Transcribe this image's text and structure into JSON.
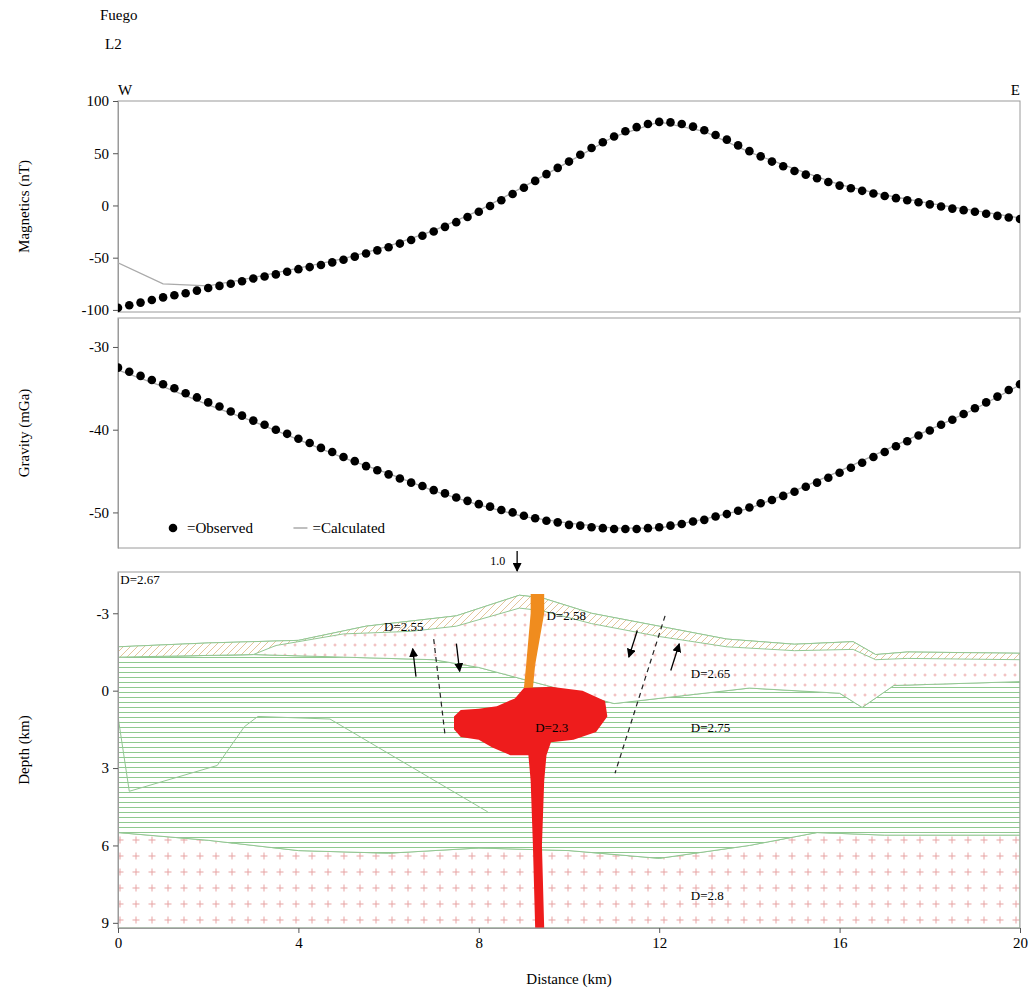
{
  "chart_data": [
    {
      "type": "scatter",
      "title": "Fuego",
      "subtitle": "L2",
      "ylabel": "Magnetics (nT)",
      "annotations": [
        {
          "text": "W",
          "x": 0
        },
        {
          "text": "E",
          "x": 20
        }
      ],
      "xlim": [
        0,
        20
      ],
      "ylim": [
        -102,
        100
      ],
      "yticks": [
        -100,
        -50,
        0,
        50,
        100
      ],
      "tick_labels": "y",
      "x": [
        0,
        0.25,
        0.5,
        0.75,
        1,
        1.25,
        1.5,
        1.75,
        2,
        2.25,
        2.5,
        2.75,
        3,
        3.25,
        3.5,
        3.75,
        4,
        4.25,
        4.5,
        4.75,
        5,
        5.25,
        5.5,
        5.75,
        6,
        6.25,
        6.5,
        6.75,
        7,
        7.25,
        7.5,
        7.75,
        8,
        8.25,
        8.5,
        8.75,
        9,
        9.25,
        9.5,
        9.75,
        10,
        10.25,
        10.5,
        10.75,
        11,
        11.25,
        11.5,
        11.75,
        12,
        12.25,
        12.5,
        12.75,
        13,
        13.25,
        13.5,
        13.75,
        14,
        14.25,
        14.5,
        14.75,
        15,
        15.25,
        15.5,
        15.75,
        16,
        16.25,
        16.5,
        16.75,
        17,
        17.25,
        17.5,
        17.75,
        18,
        18.25,
        18.5,
        18.75,
        19,
        19.25,
        19.5,
        19.75,
        20
      ],
      "series": [
        {
          "color": "#000000",
          "marker": "circle",
          "values": [
            -98,
            -95.5,
            -93,
            -90.5,
            -88,
            -86,
            -84,
            -81.5,
            -79,
            -77,
            -75,
            -72.5,
            -70,
            -68,
            -66,
            -63.5,
            -61,
            -59,
            -57,
            -54.5,
            -52,
            -49,
            -46,
            -43,
            -40,
            -36.5,
            -33,
            -29,
            -25,
            -20.5,
            -16,
            -11,
            -6,
            -0.5,
            5,
            11,
            17,
            23.5,
            30,
            36,
            42,
            48.5,
            55,
            60.5,
            66,
            71,
            75,
            78,
            80,
            79.5,
            78,
            75.5,
            72,
            67.5,
            63,
            57.5,
            52,
            47,
            42,
            37.5,
            33,
            29.5,
            26,
            22.5,
            19,
            16.5,
            14,
            11.5,
            9,
            7,
            5,
            3,
            1,
            -1,
            -3,
            -4.5,
            -6,
            -8,
            -10,
            -11.5,
            -13
          ]
        },
        {
          "color": "#aaaaaa",
          "type": "line",
          "line_style": "solid",
          "x": [
            0,
            1,
            2,
            3,
            4,
            5,
            6,
            7,
            8,
            9,
            10,
            11,
            12,
            13,
            14,
            15,
            16,
            17,
            18,
            19,
            20
          ],
          "values": [
            -55,
            -75,
            -77,
            -69,
            -60,
            -51,
            -39,
            -24,
            -5,
            18,
            42,
            66,
            80,
            71,
            51,
            35,
            20,
            10,
            2,
            -5,
            -12
          ]
        }
      ]
    },
    {
      "type": "scatter",
      "ylabel": "Gravity (mGa)",
      "legend": "lower left",
      "xlim": [
        0,
        20
      ],
      "ylim": [
        -54.3,
        -26.5
      ],
      "yticks": [
        -30,
        -40,
        -50
      ],
      "tick_labels": "y",
      "x": [
        0,
        0.25,
        0.5,
        0.75,
        1,
        1.25,
        1.5,
        1.75,
        2,
        2.25,
        2.5,
        2.75,
        3,
        3.25,
        3.5,
        3.75,
        4,
        4.25,
        4.5,
        4.75,
        5,
        5.25,
        5.5,
        5.75,
        6,
        6.25,
        6.5,
        6.75,
        7,
        7.25,
        7.5,
        7.75,
        8,
        8.25,
        8.5,
        8.75,
        9,
        9.25,
        9.5,
        9.75,
        10,
        10.25,
        10.5,
        10.75,
        11,
        11.25,
        11.5,
        11.75,
        12,
        12.25,
        12.5,
        12.75,
        13,
        13.25,
        13.5,
        13.75,
        14,
        14.25,
        14.5,
        14.75,
        15,
        15.25,
        15.5,
        15.75,
        16,
        16.25,
        16.5,
        16.75,
        17,
        17.25,
        17.5,
        17.75,
        18,
        18.25,
        18.5,
        18.75,
        19,
        19.25,
        19.5,
        19.75,
        20
      ],
      "series": [
        {
          "name": "=Observed",
          "color": "#000000",
          "marker": "circle",
          "values": [
            -32.5,
            -33.0,
            -33.5,
            -34.0,
            -34.5,
            -35.0,
            -35.6,
            -36.1,
            -36.7,
            -37.2,
            -37.8,
            -38.3,
            -38.9,
            -39.4,
            -40.0,
            -40.5,
            -41.1,
            -41.6,
            -42.2,
            -42.7,
            -43.3,
            -43.8,
            -44.4,
            -44.9,
            -45.4,
            -45.9,
            -46.4,
            -46.8,
            -47.3,
            -47.7,
            -48.2,
            -48.6,
            -49.0,
            -49.3,
            -49.7,
            -50.0,
            -50.4,
            -50.7,
            -51.0,
            -51.2,
            -51.5,
            -51.6,
            -51.8,
            -51.9,
            -52.0,
            -52.0,
            -52.0,
            -51.9,
            -51.8,
            -51.6,
            -51.4,
            -51.1,
            -50.9,
            -50.5,
            -50.2,
            -49.8,
            -49.4,
            -48.9,
            -48.5,
            -48.0,
            -47.5,
            -46.9,
            -46.4,
            -45.8,
            -45.2,
            -44.6,
            -44.0,
            -43.3,
            -42.7,
            -42.0,
            -41.4,
            -40.7,
            -40.1,
            -39.4,
            -38.8,
            -38.1,
            -37.4,
            -36.7,
            -36.0,
            -35.2,
            -34.5
          ]
        },
        {
          "name": "=Calculated",
          "color": "#aaaaaa",
          "type": "line",
          "line_style": "solid",
          "x": [
            0,
            1,
            2,
            3,
            4,
            5,
            6,
            7,
            8,
            9,
            10,
            11,
            12,
            13,
            14,
            15,
            16,
            17,
            18,
            19,
            20
          ],
          "values": [
            -32.8,
            -34.8,
            -37,
            -39,
            -41.2,
            -43.4,
            -45.3,
            -47.4,
            -49.1,
            -50.5,
            -51.3,
            -51.9,
            -51.9,
            -50.8,
            -49.5,
            -47.4,
            -45,
            -42.5,
            -40,
            -37.5,
            -34.6
          ]
        }
      ]
    },
    {
      "type": "section",
      "xlabel": "Distance (km)",
      "ylabel": "Depth (km)",
      "xlim": [
        0,
        20
      ],
      "ylim": [
        -4.6,
        9.2
      ],
      "xticks": [
        0,
        4,
        8,
        12,
        16,
        20
      ],
      "yticks": [
        -3,
        0,
        3,
        6,
        9
      ],
      "annotations": [
        {
          "text": "D=2.67",
          "x": 0.05,
          "y": -4.15
        }
      ],
      "location": {
        "text": "1.0",
        "x": 8.85
      },
      "bodies": [
        {
          "label": {
            "text": "D=2.8",
            "x": 12.7,
            "y": 8.1
          },
          "color": "#e8a3a3",
          "marker": "cross",
          "x": [
            0,
            2,
            4,
            6,
            8,
            10,
            12,
            14,
            15.5,
            17,
            20,
            20,
            0
          ],
          "y": [
            5.5,
            5.8,
            6.2,
            6.3,
            6.1,
            6.2,
            6.5,
            6.0,
            5.5,
            5.6,
            5.6,
            9.2,
            9.2
          ]
        },
        {
          "label": {
            "text": "D=2.75",
            "x": 12.7,
            "y": 1.6
          },
          "color": "#8fc98f",
          "marker": "line",
          "x": [
            0,
            3,
            5,
            7,
            8,
            9.5,
            11,
            12.5,
            14,
            16,
            16.5,
            17.2,
            20,
            20,
            17,
            15.5,
            14,
            12,
            10,
            8,
            6,
            4,
            2,
            0
          ],
          "y": [
            -1.3,
            -1.4,
            -1.3,
            -1.2,
            -0.9,
            -0.2,
            0.5,
            0.2,
            -0.1,
            0.1,
            0.65,
            -0.2,
            -0.35,
            5.6,
            5.6,
            5.5,
            6.0,
            6.5,
            6.2,
            6.1,
            6.3,
            6.2,
            5.8,
            5.5
          ]
        },
        {
          "label": {
            "text": "D=2.65",
            "x": 12.7,
            "y": -0.5
          },
          "color": "#eeb0b0",
          "marker": "dot",
          "x": [
            0,
            2,
            4,
            5.5,
            6.5,
            7.5,
            8.9,
            9.4,
            10.5,
            12,
            13.5,
            15,
            16.3,
            16.8,
            17.5,
            20,
            20,
            17.2,
            16.5,
            16,
            14,
            12.5,
            11,
            9.5,
            8,
            7,
            5,
            3,
            0
          ],
          "y": [
            -1.7,
            -1.85,
            -1.95,
            -2.5,
            -2.7,
            -2.9,
            -3.7,
            -3.6,
            -3,
            -2.5,
            -2,
            -1.8,
            -1.9,
            -1.4,
            -1.5,
            -1.45,
            -0.35,
            -0.2,
            0.65,
            0.1,
            -0.1,
            0.2,
            0.5,
            -0.2,
            -0.9,
            -1.2,
            -1.3,
            -1.4,
            -1.3
          ]
        },
        {
          "label": {
            "text": "D=2.55",
            "x": 5.9,
            "y": -2.3
          },
          "color": "#e3c59c",
          "marker": "hatch",
          "x": [
            0,
            2,
            4,
            5.5,
            6.5,
            7.5,
            8.9,
            9.4,
            10.5,
            12,
            13.5,
            15,
            16.3,
            16.8,
            17.5,
            20,
            20,
            17.5,
            16.8,
            16.3,
            15,
            13.5,
            12,
            10.5,
            9.4,
            8.9,
            7.5,
            6.5,
            5,
            3.5,
            3,
            0
          ],
          "y": [
            -1.7,
            -1.85,
            -1.95,
            -2.5,
            -2.7,
            -2.9,
            -3.7,
            -3.6,
            -3,
            -2.5,
            -2,
            -1.8,
            -1.9,
            -1.4,
            -1.5,
            -1.45,
            -1.2,
            -1.25,
            -1.2,
            -1.6,
            -1.55,
            -1.7,
            -2.1,
            -2.6,
            -3.1,
            -3.2,
            -2.5,
            -2.3,
            -2.2,
            -1.75,
            -1.4,
            -1.3
          ]
        },
        {
          "label": {
            "text": "D=2.58",
            "x": 9.5,
            "y": -2.75
          },
          "color": "#f08c1e",
          "x": [
            9.15,
            9.45,
            9.45,
            9.35,
            9.25,
            9.2,
            9.0,
            9.05,
            9.1,
            9.15
          ],
          "y": [
            -3.75,
            -3.75,
            -3.0,
            -2.0,
            -1.0,
            -0.1,
            -0.1,
            -1.0,
            -2.0,
            -3.0
          ]
        },
        {
          "label": {
            "text": "D=2.3",
            "x": 9.25,
            "y": 1.6
          },
          "color": "#ee1c1c",
          "x": [
            9.0,
            9.6,
            10.3,
            10.8,
            10.85,
            10.6,
            10.1,
            9.6,
            9.5,
            9.45,
            9.4,
            9.45,
            9.25,
            9.2,
            9.15,
            9.1,
            8.7,
            8.3,
            8.0,
            7.6,
            7.45,
            7.45,
            7.6,
            8.0,
            8.4,
            8.8
          ],
          "y": [
            -0.1,
            -0.15,
            0,
            0.4,
            1.0,
            1.6,
            1.9,
            2.0,
            2.5,
            3.5,
            6,
            9.2,
            9.2,
            6,
            3.5,
            2.5,
            2.5,
            2.2,
            1.9,
            1.8,
            1.5,
            1.0,
            0.75,
            0.7,
            0.6,
            0.3
          ]
        }
      ],
      "lines": [
        {
          "line_style": "solid",
          "x": [
            0,
            0.25,
            2.2,
            2.8,
            3.1,
            4.7,
            8.2
          ],
          "y": [
            1.0,
            3.9,
            2.9,
            1.4,
            1.0,
            1.1,
            4.7
          ]
        },
        {
          "line_style": "dashed",
          "x": [
            7,
            7.25
          ],
          "y": [
            -2,
            1.7
          ]
        },
        {
          "line_style": "dashed",
          "x": [
            12.13,
            11.02
          ],
          "y": [
            -2.9,
            3.2
          ]
        }
      ]
    }
  ]
}
